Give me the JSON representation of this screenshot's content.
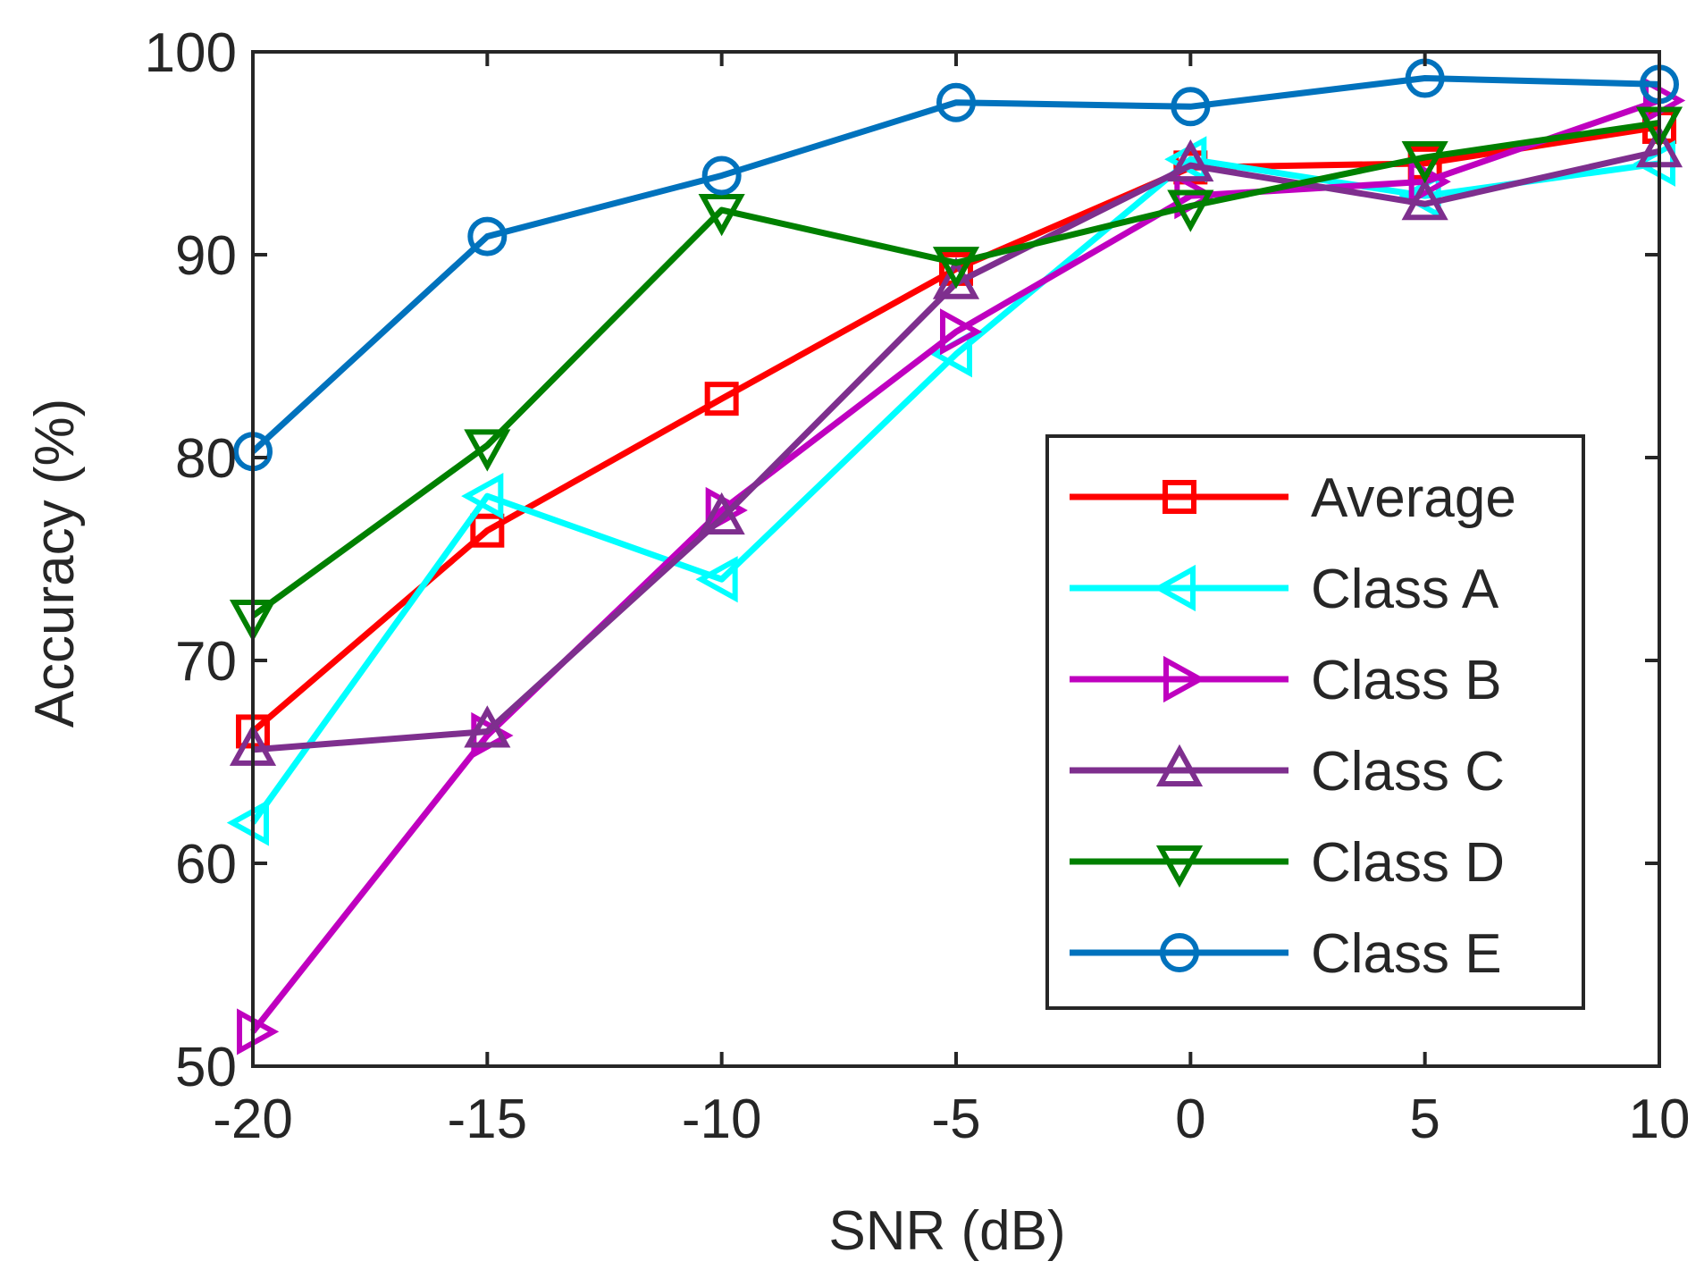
{
  "chart_data": {
    "type": "line",
    "title": "",
    "xlabel": "SNR (dB)",
    "ylabel": "Accuracy (%)",
    "xlim": [
      -20,
      10
    ],
    "ylim": [
      50,
      100
    ],
    "x": [
      -20,
      -15,
      -10,
      -5,
      0,
      5,
      10
    ],
    "xticks": [
      "-20",
      "-15",
      "-10",
      "-5",
      "0",
      "5",
      "10"
    ],
    "yticks": [
      "50",
      "60",
      "70",
      "80",
      "90",
      "100"
    ],
    "grid": false,
    "legend_position": "lower-right",
    "series": [
      {
        "name": "Average",
        "color": "#ff0000",
        "marker": "square",
        "values": [
          66.5,
          76.4,
          82.9,
          89.3,
          94.3,
          94.5,
          96.3
        ]
      },
      {
        "name": "Class A",
        "color": "#00ffff",
        "marker": "triangle-left",
        "values": [
          62.0,
          78.1,
          74.0,
          85.1,
          94.7,
          92.9,
          94.5
        ]
      },
      {
        "name": "Class B",
        "color": "#bf00bf",
        "marker": "triangle-right",
        "values": [
          51.7,
          66.3,
          77.4,
          86.2,
          92.9,
          93.6,
          97.6
        ]
      },
      {
        "name": "Class C",
        "color": "#7e2f8e",
        "marker": "triangle-up",
        "values": [
          65.6,
          66.5,
          77.0,
          88.6,
          94.4,
          92.5,
          95.1
        ]
      },
      {
        "name": "Class D",
        "color": "#008000",
        "marker": "triangle-down",
        "values": [
          72.2,
          80.6,
          92.2,
          89.6,
          92.4,
          94.8,
          96.5
        ]
      },
      {
        "name": "Class E",
        "color": "#0072bd",
        "marker": "circle",
        "values": [
          80.3,
          90.9,
          93.9,
          97.5,
          97.3,
          98.7,
          98.4
        ]
      }
    ]
  }
}
